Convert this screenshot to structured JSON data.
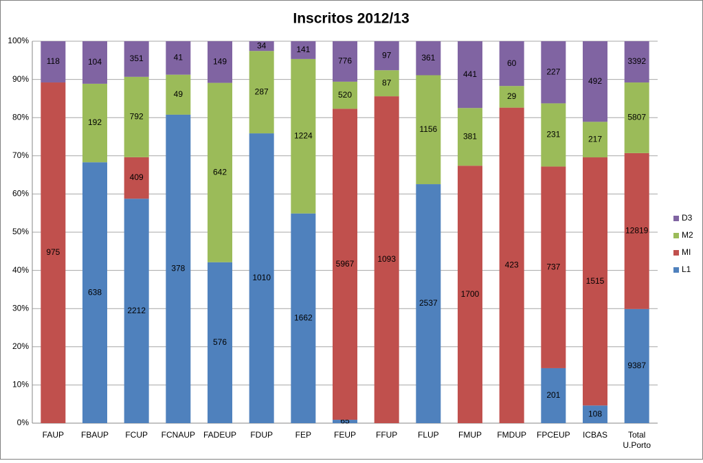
{
  "chart_data": {
    "type": "bar",
    "stacked": "percent",
    "title": "Inscritos 2012/13",
    "categories": [
      "FAUP",
      "FBAUP",
      "FCUP",
      "FCNAUP",
      "FADEUP",
      "FDUP",
      "FEP",
      "FEUP",
      "FFUP",
      "FLUP",
      "FMUP",
      "FMDUP",
      "FPCEUP",
      "ICBAS",
      "Total U.Porto"
    ],
    "series": [
      {
        "name": "L1",
        "color": "#4f81bd",
        "values": [
          null,
          638,
          2212,
          378,
          576,
          1010,
          1662,
          65,
          null,
          2537,
          null,
          null,
          201,
          108,
          9387
        ]
      },
      {
        "name": "MI",
        "color": "#c0504d",
        "values": [
          975,
          null,
          409,
          null,
          null,
          null,
          null,
          5967,
          1093,
          null,
          1700,
          423,
          737,
          1515,
          12819
        ]
      },
      {
        "name": "M2",
        "color": "#9bbb59",
        "values": [
          null,
          192,
          792,
          49,
          642,
          287,
          1224,
          520,
          87,
          1156,
          381,
          29,
          231,
          217,
          5807
        ]
      },
      {
        "name": "D3",
        "color": "#8064a2",
        "values": [
          118,
          104,
          351,
          41,
          149,
          34,
          141,
          776,
          97,
          361,
          441,
          60,
          227,
          492,
          3392
        ]
      }
    ],
    "ylim": [
      0,
      100
    ],
    "yticks": [
      {
        "value": 0,
        "label": "0%"
      },
      {
        "value": 10,
        "label": "10%"
      },
      {
        "value": 20,
        "label": "20%"
      },
      {
        "value": 30,
        "label": "30%"
      },
      {
        "value": 40,
        "label": "40%"
      },
      {
        "value": 50,
        "label": "50%"
      },
      {
        "value": 60,
        "label": "60%"
      },
      {
        "value": 70,
        "label": "70%"
      },
      {
        "value": 80,
        "label": "80%"
      },
      {
        "value": 90,
        "label": "90%"
      },
      {
        "value": 100,
        "label": "100%"
      }
    ],
    "grid": true,
    "legend": "right"
  }
}
